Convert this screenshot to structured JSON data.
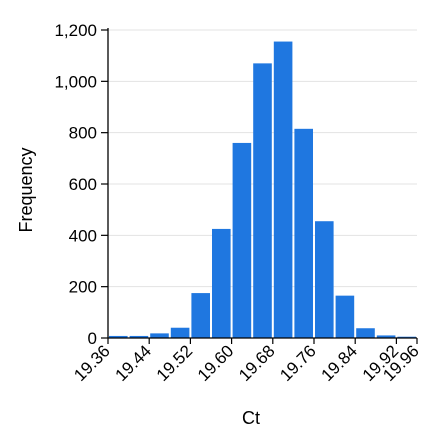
{
  "chart_data": {
    "type": "bar",
    "title": "",
    "xlabel": "Ct",
    "ylabel": "Frequency",
    "ylim": [
      0,
      1200
    ],
    "y_ticks": [
      "0",
      "200",
      "400",
      "600",
      "800",
      "1,000",
      "1,200"
    ],
    "x_tick_labels": [
      "19.36",
      "19.44",
      "19.52",
      "19.60",
      "19.68",
      "19.76",
      "19.84",
      "19.92",
      "19.96"
    ],
    "x_range": [
      19.36,
      19.96
    ],
    "grid": true,
    "bar_color": "#1f77e0",
    "bins": [
      {
        "start": 19.36,
        "end": 19.4,
        "value": 8
      },
      {
        "start": 19.4,
        "end": 19.44,
        "value": 8
      },
      {
        "start": 19.44,
        "end": 19.48,
        "value": 18
      },
      {
        "start": 19.48,
        "end": 19.52,
        "value": 40
      },
      {
        "start": 19.52,
        "end": 19.56,
        "value": 175
      },
      {
        "start": 19.56,
        "end": 19.6,
        "value": 425
      },
      {
        "start": 19.6,
        "end": 19.64,
        "value": 760
      },
      {
        "start": 19.64,
        "end": 19.68,
        "value": 1070
      },
      {
        "start": 19.68,
        "end": 19.72,
        "value": 1155
      },
      {
        "start": 19.72,
        "end": 19.76,
        "value": 815
      },
      {
        "start": 19.76,
        "end": 19.8,
        "value": 455
      },
      {
        "start": 19.8,
        "end": 19.84,
        "value": 165
      },
      {
        "start": 19.84,
        "end": 19.88,
        "value": 38
      },
      {
        "start": 19.88,
        "end": 19.92,
        "value": 10
      },
      {
        "start": 19.92,
        "end": 19.96,
        "value": 5
      }
    ]
  }
}
